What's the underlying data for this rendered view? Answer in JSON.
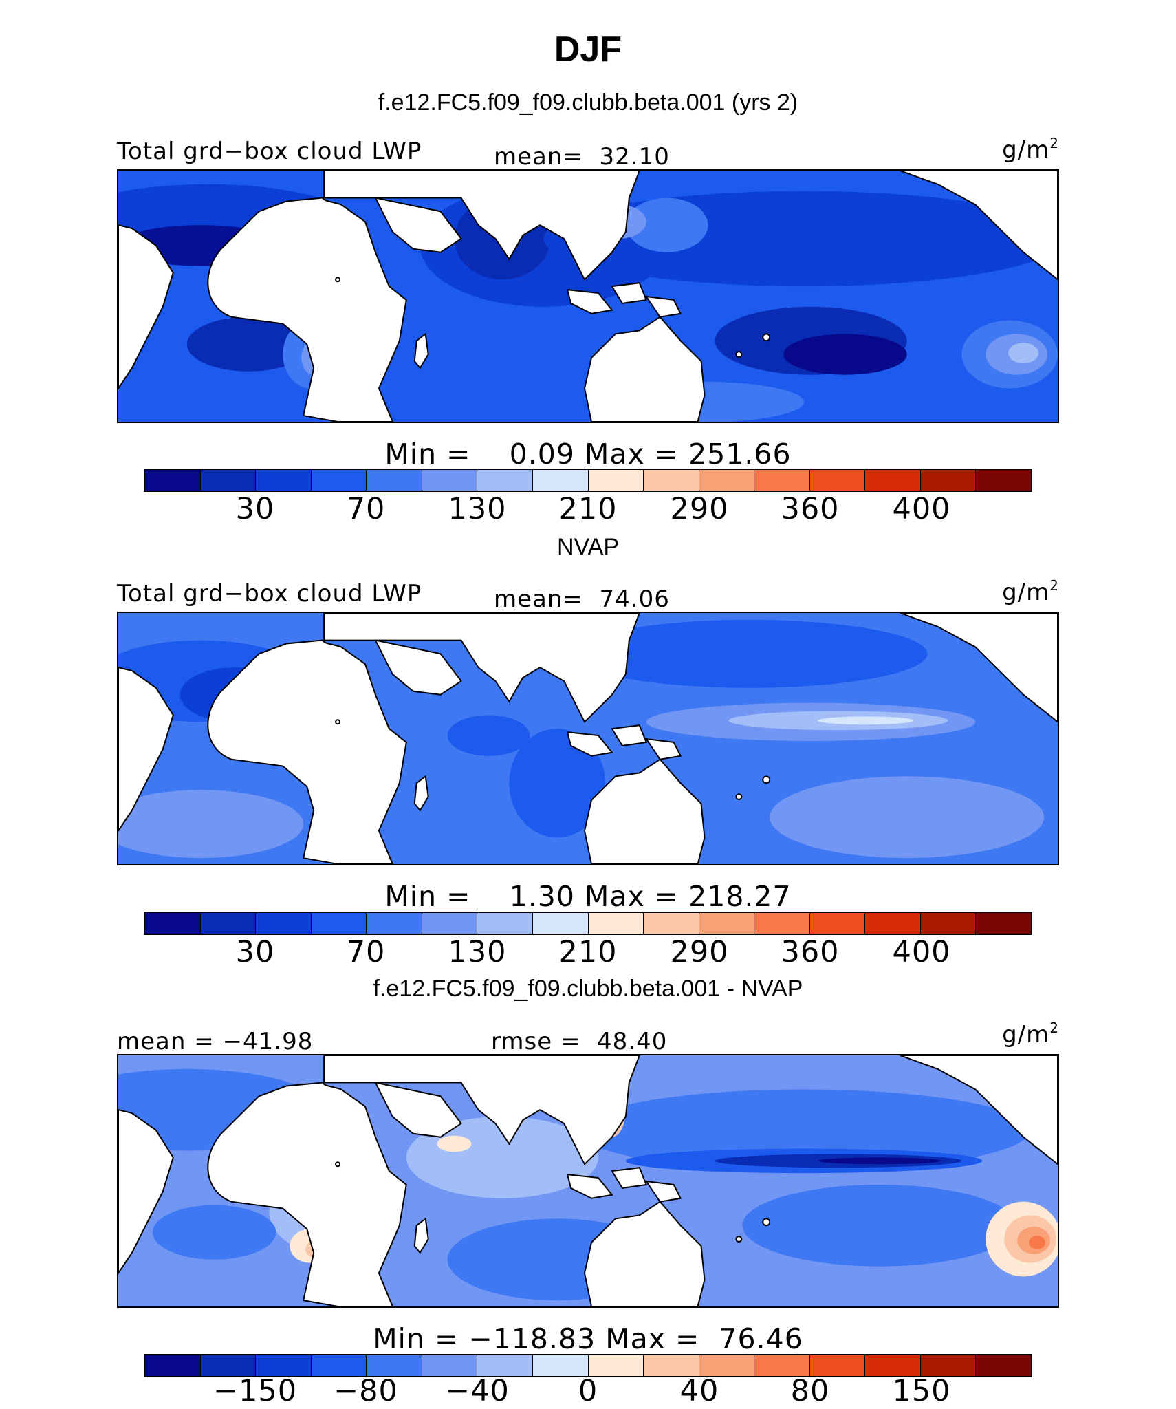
{
  "title": "DJF",
  "colors": [
    "#08088a",
    "#0a2bb4",
    "#0c3fd6",
    "#1d5bef",
    "#3f78f3",
    "#7196f4",
    "#a2bdf7",
    "#d6e6fb",
    "#fde9d6",
    "#fcc7a8",
    "#f9a077",
    "#f77848",
    "#f04d1f",
    "#d52c05",
    "#a91a03",
    "#7b0404"
  ],
  "panels": [
    {
      "title": "f.e12.FC5.f09_f09.clubb.beta.001 (yrs 2)",
      "left_label": "Total grd−box cloud LWP",
      "center_label": "mean=  32.10",
      "unit_base": "g/m",
      "unit_exp": "2",
      "minmax": "Min =    0.09 Max = 251.66",
      "ticks": [
        "30",
        "70",
        "130",
        "210",
        "290",
        "360",
        "400"
      ]
    },
    {
      "title": "NVAP",
      "left_label": "Total grd−box cloud LWP",
      "center_label": "mean=  74.06",
      "unit_base": "g/m",
      "unit_exp": "2",
      "minmax": "Min =    1.30 Max = 218.27",
      "ticks": [
        "30",
        "70",
        "130",
        "210",
        "290",
        "360",
        "400"
      ]
    },
    {
      "title": "f.e12.FC5.f09_f09.clubb.beta.001 - NVAP",
      "left_label": "mean = −41.98",
      "center_label": "rmse =  48.40",
      "unit_base": "g/m",
      "unit_exp": "2",
      "minmax": "Min = −118.83 Max =  76.46",
      "ticks": [
        "−150",
        "−80",
        "−40",
        "0",
        "40",
        "80",
        "150"
      ]
    }
  ]
}
